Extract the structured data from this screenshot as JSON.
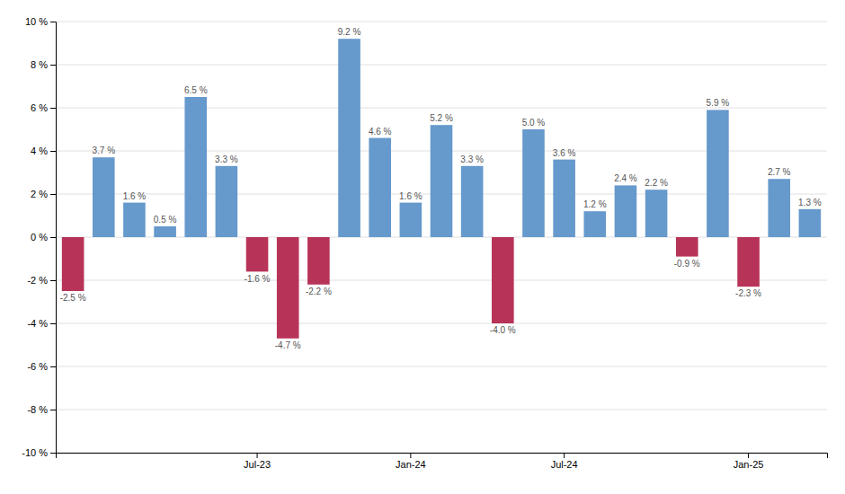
{
  "chart_data": {
    "type": "bar",
    "categories": [
      null,
      null,
      null,
      null,
      null,
      null,
      "Jul-23",
      null,
      null,
      null,
      null,
      "Jan-24",
      null,
      null,
      null,
      null,
      "Jul-24",
      null,
      null,
      null,
      null,
      null,
      "Jan-25",
      null,
      null
    ],
    "values": [
      -2.5,
      3.7,
      1.6,
      0.5,
      6.5,
      3.3,
      -1.6,
      -4.7,
      -2.2,
      9.2,
      4.6,
      1.6,
      5.2,
      3.3,
      -4.0,
      5.0,
      3.6,
      1.2,
      2.4,
      2.2,
      -0.9,
      5.9,
      -2.3,
      2.7,
      1.3
    ],
    "value_labels": [
      "-2.5 %",
      "3.7 %",
      "1.6 %",
      "0.5 %",
      "6.5 %",
      "3.3 %",
      "-1.6 %",
      "-4.7 %",
      "-2.2 %",
      "9.2 %",
      "4.6 %",
      "1.6 %",
      "5.2 %",
      "3.3 %",
      "-4.0 %",
      "5.0 %",
      "3.6 %",
      "1.2 %",
      "2.4 %",
      "2.2 %",
      "-0.9 %",
      "5.9 %",
      "-2.3 %",
      "2.7 %",
      "1.3 %"
    ],
    "colors": [
      "#b83358",
      "#6699cc",
      "#6699cc",
      "#6699cc",
      "#6699cc",
      "#6699cc",
      "#b83358",
      "#b83358",
      "#b83358",
      "#6699cc",
      "#6699cc",
      "#6699cc",
      "#6699cc",
      "#6699cc",
      "#b83358",
      "#6699cc",
      "#6699cc",
      "#6699cc",
      "#6699cc",
      "#6699cc",
      "#b83358",
      "#6699cc",
      "#b83358",
      "#6699cc",
      "#6699cc"
    ],
    "ylim": [
      -10,
      10
    ],
    "yticks": [
      {
        "value": -10,
        "label": "-10 %"
      },
      {
        "value": -8,
        "label": "-8 %"
      },
      {
        "value": -6,
        "label": "-6 %"
      },
      {
        "value": -4,
        "label": "-4 %"
      },
      {
        "value": -2,
        "label": "-2 %"
      },
      {
        "value": 0,
        "label": "0 %"
      },
      {
        "value": 2,
        "label": "2 %"
      },
      {
        "value": 4,
        "label": "4 %"
      },
      {
        "value": 6,
        "label": "6 %"
      },
      {
        "value": 8,
        "label": "8 %"
      },
      {
        "value": 10,
        "label": "10 %"
      }
    ],
    "grid": true,
    "data_labels": true
  }
}
